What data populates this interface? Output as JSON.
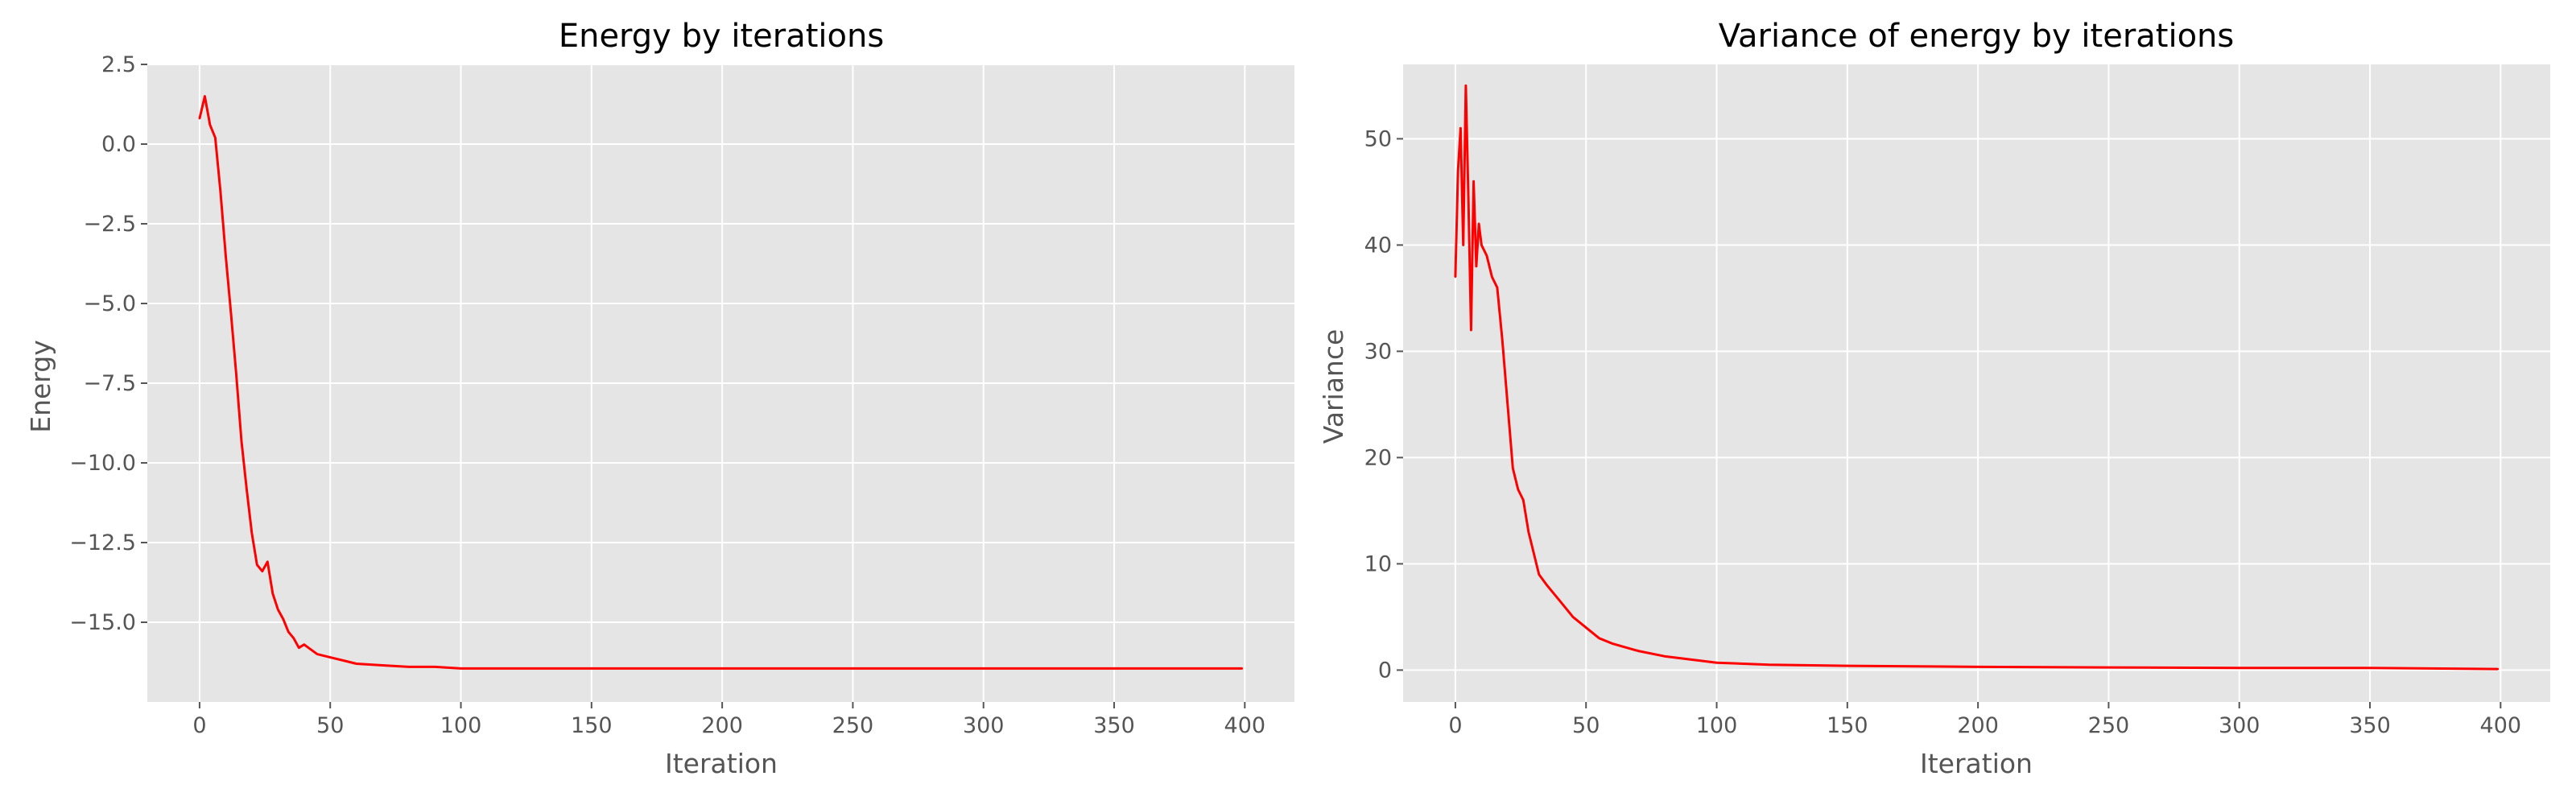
{
  "figure": {
    "background": "#ffffff",
    "axes_facecolor": "#e5e5e5",
    "grid_color": "#ffffff",
    "tick_color": "#555555",
    "line_color": "#ff0000"
  },
  "chart_data": [
    {
      "type": "line",
      "title": "Energy by iterations",
      "xlabel": "Iteration",
      "ylabel": "Energy",
      "xlim": [
        -20,
        419
      ],
      "ylim": [
        -17.5,
        2.5
      ],
      "xticks": [
        0,
        50,
        100,
        150,
        200,
        250,
        300,
        350,
        400
      ],
      "yticks": [
        2.5,
        0.0,
        -2.5,
        -5.0,
        -7.5,
        -10.0,
        -12.5,
        -15.0
      ],
      "ytick_labels": [
        "2.5",
        "0.0",
        "−2.5",
        "−5.0",
        "−7.5",
        "−10.0",
        "−12.5",
        "−15.0"
      ],
      "grid": true,
      "series": [
        {
          "color": "#ff0000",
          "x": [
            0,
            2,
            4,
            6,
            8,
            10,
            12,
            14,
            16,
            18,
            20,
            22,
            24,
            26,
            28,
            30,
            32,
            34,
            36,
            38,
            40,
            45,
            50,
            55,
            60,
            70,
            80,
            90,
            100,
            120,
            150,
            200,
            250,
            300,
            350,
            399
          ],
          "y": [
            0.8,
            1.5,
            0.6,
            0.2,
            -1.5,
            -3.5,
            -5.3,
            -7.2,
            -9.3,
            -10.8,
            -12.2,
            -13.2,
            -13.4,
            -13.1,
            -14.1,
            -14.6,
            -14.9,
            -15.3,
            -15.5,
            -15.8,
            -15.7,
            -16.0,
            -16.1,
            -16.2,
            -16.3,
            -16.35,
            -16.4,
            -16.4,
            -16.45,
            -16.45,
            -16.45,
            -16.45,
            -16.45,
            -16.45,
            -16.45,
            -16.45
          ]
        }
      ]
    },
    {
      "type": "line",
      "title": "Variance of energy by iterations",
      "xlabel": "Iteration",
      "ylabel": "Variance",
      "xlim": [
        -20,
        419
      ],
      "ylim": [
        -3,
        57
      ],
      "xticks": [
        0,
        50,
        100,
        150,
        200,
        250,
        300,
        350,
        400
      ],
      "yticks": [
        0,
        10,
        20,
        30,
        40,
        50
      ],
      "ytick_labels": [
        "0",
        "10",
        "20",
        "30",
        "40",
        "50"
      ],
      "grid": true,
      "series": [
        {
          "color": "#ff0000",
          "x": [
            0,
            1,
            2,
            3,
            4,
            5,
            6,
            7,
            8,
            9,
            10,
            12,
            14,
            16,
            18,
            20,
            22,
            24,
            26,
            28,
            30,
            32,
            35,
            40,
            45,
            50,
            55,
            60,
            70,
            80,
            90,
            100,
            120,
            150,
            200,
            250,
            300,
            350,
            399
          ],
          "y": [
            37,
            47,
            51,
            40,
            55,
            44,
            32,
            46,
            38,
            42,
            40,
            39,
            37,
            36,
            31,
            25,
            19,
            17,
            16,
            13,
            11,
            9,
            8,
            6.5,
            5,
            4,
            3,
            2.5,
            1.8,
            1.3,
            1.0,
            0.7,
            0.5,
            0.4,
            0.3,
            0.25,
            0.2,
            0.2,
            0.1
          ]
        }
      ]
    }
  ]
}
